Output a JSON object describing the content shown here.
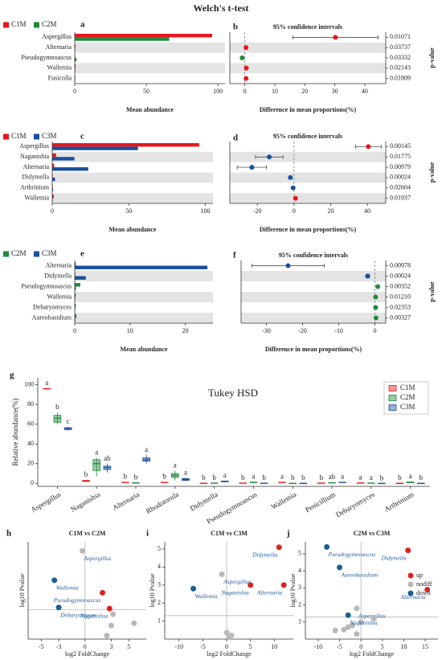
{
  "title": "Welch's t-test",
  "chart_data": [
    {
      "type": "bar",
      "panel_label": "a",
      "xlabel": "Mean abundance",
      "categories": [
        "Aspergillus",
        "Alternaria",
        "Pseudogymnoascus",
        "Wallemia",
        "Fusicolla"
      ],
      "series": [
        {
          "name": "C1M",
          "color": "#e8161b",
          "values": [
            96,
            0.5,
            0.2,
            0.6,
            0.4
          ]
        },
        {
          "name": "C2M",
          "color": "#1e8a3a",
          "values": [
            66,
            0.1,
            1.2,
            0.1,
            0.05
          ]
        }
      ],
      "xlim": [
        0,
        105
      ],
      "xticks": [
        0,
        50,
        100
      ]
    },
    {
      "type": "ci",
      "panel_label": "b",
      "title": "95% confidence intervals",
      "xlabel": "Difference in mean proportions(%)",
      "right_label": "p-value",
      "categories": [
        "Aspergillus",
        "Alternaria",
        "Pseudogymnoascus",
        "Wallemia",
        "Fusicolla"
      ],
      "values": [
        30.2,
        0.4,
        -0.9,
        0.5,
        0.4
      ],
      "lower": [
        16,
        0.1,
        -1.3,
        0.2,
        0.1
      ],
      "upper": [
        44.5,
        0.7,
        -0.5,
        0.8,
        0.7
      ],
      "point_colors": [
        "#e8161b",
        "#e8161b",
        "#1e8a3a",
        "#e8161b",
        "#e8161b"
      ],
      "p_values": [
        "0.01071",
        "0.03737",
        "0.03332",
        "0.02143",
        "0.01809"
      ],
      "xlim": [
        -5,
        47
      ],
      "xticks": [
        0,
        10,
        20,
        30,
        40
      ]
    },
    {
      "type": "bar",
      "panel_label": "c",
      "xlabel": "Mean abundance",
      "categories": [
        "Aspergillus",
        "Naganishia",
        "Alternaria",
        "Didymella",
        "Arthrinium",
        "Wallemia"
      ],
      "series": [
        {
          "name": "C1M",
          "color": "#e8161b",
          "values": [
            96,
            2.5,
            1.2,
            0.2,
            0.1,
            1.0
          ]
        },
        {
          "name": "C3M",
          "color": "#1a4f9c",
          "values": [
            56,
            14.5,
            23.5,
            1.8,
            0.5,
            0.1
          ]
        }
      ],
      "xlim": [
        0,
        105
      ],
      "xticks": [
        0,
        50,
        100
      ]
    },
    {
      "type": "ci",
      "panel_label": "d",
      "title": "95% confidence intervals",
      "xlabel": "Difference in mean proportions(%)",
      "right_label": "p-value",
      "categories": [
        "Aspergillus",
        "Naganishia",
        "Alternaria",
        "Didymella",
        "Arthrinium",
        "Wallemia"
      ],
      "values": [
        40.5,
        -13.5,
        -23,
        -2,
        -0.5,
        0.8
      ],
      "lower": [
        33.5,
        -21,
        -31,
        -2.5,
        -0.8,
        0.4
      ],
      "upper": [
        47.5,
        -6,
        -15,
        -1.5,
        -0.2,
        1.2
      ],
      "point_colors": [
        "#e8161b",
        "#1a4f9c",
        "#1a4f9c",
        "#1a4f9c",
        "#1a4f9c",
        "#e8161b"
      ],
      "p_values": [
        "0.00145",
        "0.01775",
        "0.00979",
        "0.00024",
        "0.02604",
        "0.01937"
      ],
      "xlim": [
        -35,
        50
      ],
      "xticks": [
        -20,
        0,
        20,
        40
      ]
    },
    {
      "type": "bar",
      "panel_label": "e",
      "xlabel": "Mean abundance",
      "categories": [
        "Alternaria",
        "Didymella",
        "Pseudogymnoascus",
        "Wallemia",
        "Debaryomyces",
        "Aureobasidium"
      ],
      "series": [
        {
          "name": "C2M",
          "color": "#1e8a3a",
          "values": [
            0.2,
            0.1,
            1.0,
            0.2,
            0.2,
            0.3
          ]
        },
        {
          "name": "C3M",
          "color": "#1a4f9c",
          "values": [
            24,
            2,
            0.2,
            0.05,
            0.05,
            0.1
          ]
        }
      ],
      "xlim": [
        0,
        25
      ],
      "xticks": [
        0,
        10,
        20
      ]
    },
    {
      "type": "ci",
      "panel_label": "f",
      "title": "95% confidence intervals",
      "xlabel": "Difference in mean proportions(%)",
      "right_label": "p-value",
      "categories": [
        "Alternaria",
        "Didymella",
        "Pseudogymnoascus",
        "Wallemia",
        "Debaryomyces",
        "Aureobasidium"
      ],
      "values": [
        -24,
        -2,
        0.8,
        0.2,
        0.2,
        0.3
      ],
      "lower": [
        -34,
        -2.5,
        0.5,
        0.1,
        0.1,
        0.1
      ],
      "upper": [
        -14,
        -1.5,
        1.1,
        0.3,
        0.3,
        0.5
      ],
      "point_colors": [
        "#1a4f9c",
        "#1a4f9c",
        "#1e8a3a",
        "#1e8a3a",
        "#1e8a3a",
        "#1e8a3a"
      ],
      "p_values": [
        "0.00978",
        "0.00024",
        "0.00352",
        "0.01210",
        "0.02353",
        "0.00327"
      ],
      "xlim": [
        -37,
        3
      ],
      "xticks": [
        -30,
        -20,
        -10,
        0
      ]
    },
    {
      "type": "box",
      "panel_label": "g",
      "title": "Tukey HSD",
      "ylabel": "Relative abundance(%)",
      "categories": [
        "Aspergillus",
        "Naganishia",
        "Alternaria",
        "Rhodotorula",
        "Didymella",
        "Pseudogymnoascus",
        "Wallemia",
        "Penicillium",
        "Debaryomyces",
        "Arthrinium"
      ],
      "series": [
        {
          "name": "C1M",
          "color": "#e8161b",
          "letters": [
            "a",
            "b",
            "b",
            "b",
            "b",
            "b",
            "a",
            "b",
            "a",
            "b"
          ],
          "values": [
            [
              95.5,
              96,
              96,
              96,
              96.5
            ],
            [
              1.5,
              2,
              2.5,
              3,
              3.5
            ],
            [
              0.5,
              0.8,
              1,
              1.2,
              1.5
            ],
            [
              0.5,
              0.8,
              1,
              1.2,
              1.5
            ],
            [
              0.1,
              0.2,
              0.2,
              0.3,
              0.4
            ],
            [
              0.1,
              0.2,
              0.3,
              0.4,
              0.5
            ],
            [
              0.6,
              0.8,
              1,
              1.2,
              1.4
            ],
            [
              0.1,
              0.2,
              0.3,
              0.4,
              0.5
            ],
            [
              0.2,
              0.3,
              0.4,
              0.5,
              0.6
            ],
            [
              0.05,
              0.1,
              0.1,
              0.15,
              0.2
            ]
          ]
        },
        {
          "name": "C2M",
          "color": "#1e8a3a",
          "letters": [
            "b",
            "a",
            "b",
            "a",
            "b",
            "a",
            "b",
            "ab",
            "a",
            "a"
          ],
          "values": [
            [
              60,
              62,
              66,
              69,
              72
            ],
            [
              7,
              13,
              20,
              24,
              26
            ],
            [
              0.2,
              0.3,
              0.5,
              0.7,
              0.9
            ],
            [
              3,
              6,
              8,
              10,
              13
            ],
            [
              0.1,
              0.2,
              0.3,
              0.4,
              0.5
            ],
            [
              0.5,
              0.8,
              1,
              1.3,
              1.6
            ],
            [
              0.05,
              0.1,
              0.1,
              0.15,
              0.2
            ],
            [
              0.2,
              0.4,
              0.6,
              0.8,
              1
            ],
            [
              0.1,
              0.2,
              0.3,
              0.4,
              0.5
            ],
            [
              0.3,
              0.6,
              1,
              1.4,
              1.8
            ]
          ]
        },
        {
          "name": "C3M",
          "color": "#1a4f9c",
          "letters": [
            "c",
            "ab",
            "a",
            "a",
            "a",
            "b",
            "b",
            "a",
            "b",
            "b"
          ],
          "values": [
            [
              53.5,
              54.5,
              55.5,
              56.5,
              57.5
            ],
            [
              11,
              14,
              16,
              17.5,
              20
            ],
            [
              20,
              22.5,
              24,
              26,
              29
            ],
            [
              2,
              3,
              4,
              5,
              5.5
            ],
            [
              1.2,
              1.6,
              2,
              2.4,
              2.8
            ],
            [
              0.1,
              0.2,
              0.2,
              0.3,
              0.4
            ],
            [
              0.05,
              0.1,
              0.1,
              0.15,
              0.2
            ],
            [
              0.5,
              0.8,
              1,
              1.2,
              1.5
            ],
            [
              0.02,
              0.05,
              0.05,
              0.08,
              0.1
            ],
            [
              0.05,
              0.1,
              0.1,
              0.15,
              0.2
            ]
          ]
        }
      ],
      "ylim": [
        -3,
        107
      ],
      "yticks": [
        0,
        20,
        40,
        60,
        80,
        100
      ]
    },
    {
      "type": "volcano",
      "panel_label": "h",
      "title": "C1M vs C2M",
      "xlabel": "log2 FoldChange",
      "ylabel": "log10 Pvalue",
      "series": [
        {
          "name": "up",
          "color": "#d7261e",
          "x": [
            2,
            2.8
          ],
          "values": [
            2.05,
            1.35
          ],
          "labels": [
            "Pseudogymnoascus",
            "Naganishia"
          ]
        },
        {
          "name": "nodiff",
          "color": "#b8b8b8",
          "x": [
            -0.3,
            3.2,
            3,
            5.6,
            2.5
          ],
          "values": [
            3.9,
            1.1,
            0.6,
            0.7,
            0.15
          ],
          "labels": [
            "Aspergillus",
            null,
            null,
            null,
            null
          ]
        },
        {
          "name": "down",
          "color": "#1d5e8f",
          "x": [
            -3.5,
            -3
          ],
          "values": [
            2.6,
            1.4
          ],
          "labels": [
            "Wallemia",
            "Debaryomyces"
          ]
        }
      ],
      "xlim": [
        -6.5,
        7
      ],
      "xticks": [
        -5,
        -3,
        0,
        3,
        5
      ],
      "ylim": [
        0,
        4.3
      ],
      "hline": 1.3,
      "vline": 0
    },
    {
      "type": "volcano",
      "panel_label": "i",
      "title": "C1M vs C3M",
      "xlabel": "log2 FoldChange",
      "ylabel": "log10 Pvalue",
      "series": [
        {
          "name": "up",
          "color": "#d7261e",
          "x": [
            11,
            5,
            12
          ],
          "values": [
            5.1,
            3.0,
            3.0
          ],
          "labels": [
            "Didymella",
            "Naganishia",
            "Alternaria"
          ]
        },
        {
          "name": "nodiff",
          "color": "#b8b8b8",
          "x": [
            -1,
            0,
            0.5,
            1
          ],
          "values": [
            3.6,
            0.35,
            0.1,
            0.2
          ],
          "labels": [
            "Aspergillus",
            null,
            null,
            null
          ]
        },
        {
          "name": "down",
          "color": "#1d5e8f",
          "x": [
            -7
          ],
          "values": [
            2.8
          ],
          "labels": [
            "Wallemia"
          ]
        }
      ],
      "xlim": [
        -13,
        14
      ],
      "xticks": [
        -10,
        -5,
        0,
        5,
        10
      ],
      "ylim": [
        0,
        5.4
      ],
      "yticks": [
        1,
        2,
        3,
        4,
        5
      ],
      "hline": 1.3,
      "vline": 0
    },
    {
      "type": "volcano",
      "panel_label": "j",
      "title": "C2M vs C3M",
      "xlabel": "log2 FoldChange",
      "ylabel": "log10 Pvalue",
      "legend": "upper right",
      "series": [
        {
          "name": "up",
          "color": "#d7261e",
          "x": [
            11,
            15.5
          ],
          "values": [
            5.2,
            2.9
          ],
          "labels": [
            "Didymella",
            "Alternaria"
          ]
        },
        {
          "name": "nodiff",
          "color": "#b8b8b8",
          "x": [
            -1,
            -6,
            -4,
            -3,
            -2,
            -1,
            0,
            3
          ],
          "values": [
            1.8,
            0.5,
            0.55,
            0.7,
            0.8,
            0.3,
            1.0,
            1.2
          ],
          "labels": [
            "Aspergillus",
            null,
            null,
            null,
            null,
            null,
            null,
            null
          ]
        },
        {
          "name": "down",
          "color": "#1d5e8f",
          "x": [
            -8,
            -5,
            -3
          ],
          "values": [
            5.4,
            4.2,
            1.4
          ],
          "labels": [
            "Pseudogymnoascus",
            "Aureobasidium",
            "Naganishia"
          ]
        }
      ],
      "xlim": [
        -13,
        18
      ],
      "xticks": [
        -10,
        -5,
        0,
        5,
        10,
        15
      ],
      "ylim": [
        0,
        5.7
      ],
      "yticks": [
        1,
        2,
        3,
        4,
        5
      ],
      "hline": 1.3,
      "vline": 0
    }
  ]
}
